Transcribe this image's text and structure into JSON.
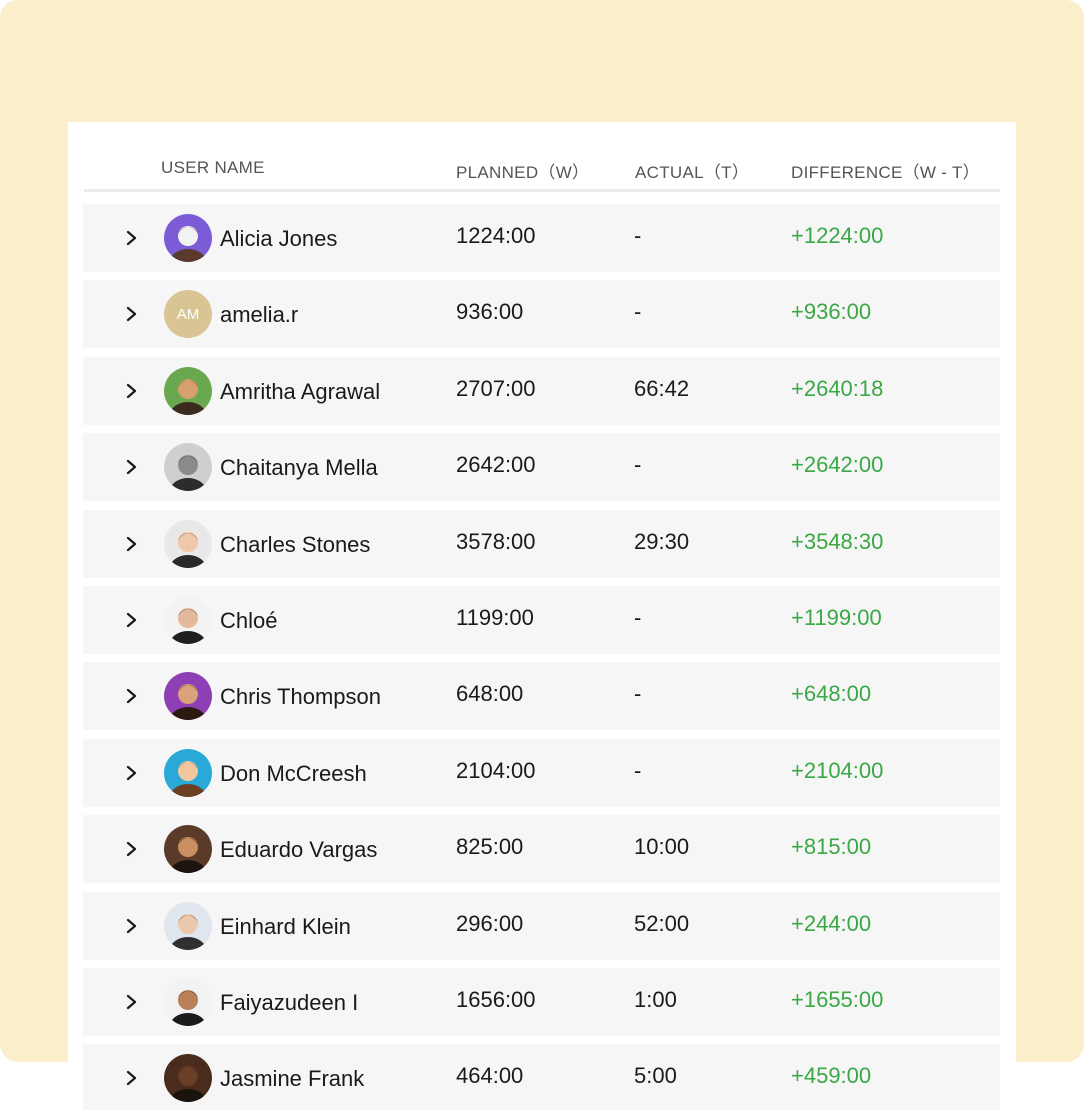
{
  "colors": {
    "background_panel": "#fbeecb",
    "row_bg": "#f6f6f6",
    "positive_diff": "#3aa845",
    "header_text": "#555555"
  },
  "headers": {
    "user_name": "USER NAME",
    "planned": "PLANNED（W）",
    "actual": "ACTUAL（T）",
    "difference": "DIFFERENCE（W - T）"
  },
  "rows": [
    {
      "name": "Alicia Jones",
      "planned": "1224:00",
      "actual": "-",
      "difference": "+1224:00",
      "avatar": "photo"
    },
    {
      "name": "amelia.r",
      "planned": "936:00",
      "actual": "-",
      "difference": "+936:00",
      "avatar": "initials",
      "initials": "AM"
    },
    {
      "name": "Amritha Agrawal",
      "planned": "2707:00",
      "actual": "66:42",
      "difference": "+2640:18",
      "avatar": "photo"
    },
    {
      "name": "Chaitanya Mella",
      "planned": "2642:00",
      "actual": "-",
      "difference": "+2642:00",
      "avatar": "photo"
    },
    {
      "name": "Charles Stones",
      "planned": "3578:00",
      "actual": "29:30",
      "difference": "+3548:30",
      "avatar": "photo"
    },
    {
      "name": "Chloé",
      "planned": "1199:00",
      "actual": "-",
      "difference": "+1199:00",
      "avatar": "photo"
    },
    {
      "name": "Chris Thompson",
      "planned": "648:00",
      "actual": "-",
      "difference": "+648:00",
      "avatar": "photo"
    },
    {
      "name": "Don McCreesh",
      "planned": "2104:00",
      "actual": "-",
      "difference": "+2104:00",
      "avatar": "photo"
    },
    {
      "name": "Eduardo Vargas",
      "planned": "825:00",
      "actual": "10:00",
      "difference": "+815:00",
      "avatar": "photo"
    },
    {
      "name": "Einhard Klein",
      "planned": "296:00",
      "actual": "52:00",
      "difference": "+244:00",
      "avatar": "photo"
    },
    {
      "name": "Faiyazudeen I",
      "planned": "1656:00",
      "actual": "1:00",
      "difference": "+1655:00",
      "avatar": "photo"
    },
    {
      "name": "Jasmine Frank",
      "planned": "464:00",
      "actual": "5:00",
      "difference": "+459:00",
      "avatar": "photo"
    }
  ]
}
